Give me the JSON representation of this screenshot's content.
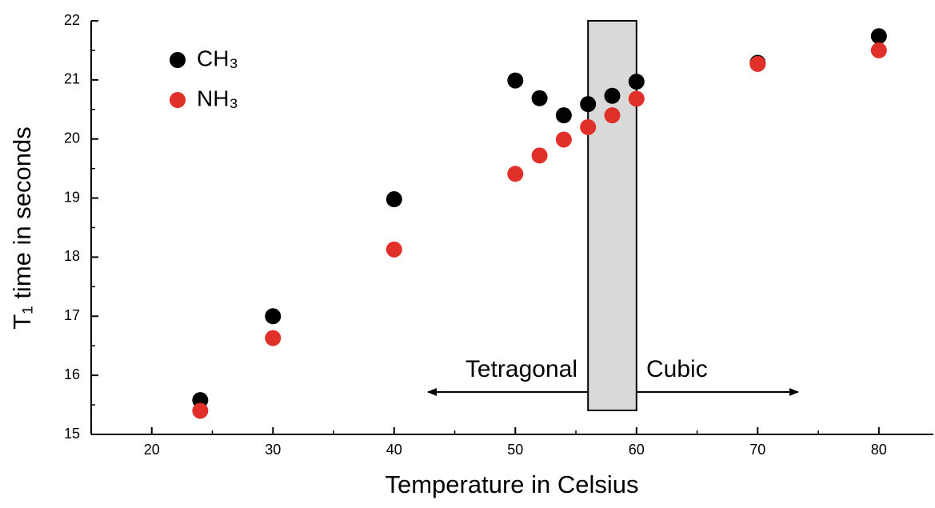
{
  "chart_data": {
    "type": "scatter",
    "xlabel": "Temperature in Celsius",
    "ylabel": "T₁ time in seconds",
    "annotations": [
      "Tetragonal",
      "Cubic"
    ],
    "xlim": [
      15,
      84.5
    ],
    "xticks": [
      20,
      30,
      40,
      50,
      60,
      70,
      80
    ],
    "xminorticks": [
      25,
      35,
      45,
      55,
      65,
      75
    ],
    "ylim": [
      15,
      22
    ],
    "yticks": [
      15,
      16,
      17,
      18,
      19,
      20,
      21,
      22
    ],
    "yminorticks": [
      15.5,
      16.5,
      17.5,
      18.5,
      19.5,
      20.5,
      21.5
    ],
    "shaded_region": [
      56,
      60
    ],
    "legend": "upper left",
    "series": [
      {
        "name": "CH₃",
        "color": "#000000",
        "x": [
          24,
          30,
          40,
          50,
          52,
          54,
          56,
          58,
          60,
          70,
          80
        ],
        "values": [
          15.58,
          17.0,
          18.98,
          20.99,
          20.69,
          20.4,
          20.59,
          20.73,
          20.97,
          21.29,
          21.74
        ]
      },
      {
        "name": "NH₃",
        "color": "#e0302a",
        "x": [
          24,
          30,
          40,
          50,
          52,
          54,
          56,
          58,
          60,
          70,
          80
        ],
        "values": [
          15.4,
          16.63,
          18.13,
          19.41,
          19.72,
          19.99,
          20.2,
          20.4,
          20.68,
          21.27,
          21.5
        ]
      }
    ]
  }
}
